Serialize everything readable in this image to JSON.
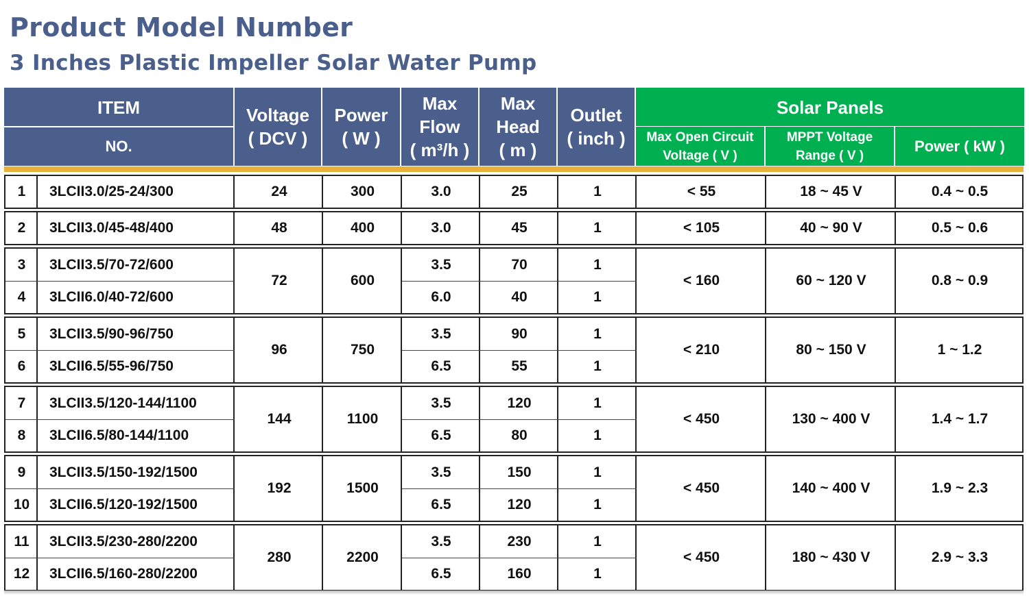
{
  "title": "Product Model Number",
  "subtitle": "3 Inches Plastic Impeller Solar Water Pump",
  "header": {
    "item": "ITEM",
    "no": "NO.",
    "voltage": "Voltage",
    "voltage_unit": "( DCV )",
    "power": "Power",
    "power_unit": "( W )",
    "flow_1": "Max",
    "flow_2": "Flow",
    "flow_unit": "( m³/h )",
    "head_1": "Max",
    "head_2": "Head",
    "head_unit": "( m )",
    "outlet": "Outlet",
    "outlet_unit": "( inch )",
    "solar": "Solar Panels",
    "voc_1": "Max Open Circuit",
    "voc_2": "Voltage ( V )",
    "mppt_1": "MPPT Voltage",
    "mppt_2": "Range ( V )",
    "kw": "Power ( kW )"
  },
  "groups": [
    {
      "voltage": "24",
      "power": "300",
      "voc": "< 55",
      "mppt": "18 ~ 45 V",
      "kw": "0.4 ~ 0.5",
      "rows": [
        {
          "no": "1",
          "model": "3LCII3.0/25-24/300",
          "flow": "3.0",
          "head": "25",
          "outlet": "1"
        }
      ]
    },
    {
      "voltage": "48",
      "power": "400",
      "voc": "< 105",
      "mppt": "40 ~ 90 V",
      "kw": "0.5 ~ 0.6",
      "rows": [
        {
          "no": "2",
          "model": "3LCII3.0/45-48/400",
          "flow": "3.0",
          "head": "45",
          "outlet": "1"
        }
      ]
    },
    {
      "voltage": "72",
      "power": "600",
      "voc": "< 160",
      "mppt": "60 ~ 120 V",
      "kw": "0.8 ~ 0.9",
      "rows": [
        {
          "no": "3",
          "model": "3LCII3.5/70-72/600",
          "flow": "3.5",
          "head": "70",
          "outlet": "1"
        },
        {
          "no": "4",
          "model": "3LCII6.0/40-72/600",
          "flow": "6.0",
          "head": "40",
          "outlet": "1"
        }
      ]
    },
    {
      "voltage": "96",
      "power": "750",
      "voc": "< 210",
      "mppt": "80 ~ 150 V",
      "kw": "1 ~ 1.2",
      "rows": [
        {
          "no": "5",
          "model": "3LCII3.5/90-96/750",
          "flow": "3.5",
          "head": "90",
          "outlet": "1"
        },
        {
          "no": "6",
          "model": "3LCII6.5/55-96/750",
          "flow": "6.5",
          "head": "55",
          "outlet": "1"
        }
      ]
    },
    {
      "voltage": "144",
      "power": "1100",
      "voc": "< 450",
      "mppt": "130 ~ 400 V",
      "kw": "1.4 ~ 1.7",
      "rows": [
        {
          "no": "7",
          "model": "3LCII3.5/120-144/1100",
          "flow": "3.5",
          "head": "120",
          "outlet": "1"
        },
        {
          "no": "8",
          "model": "3LCII6.5/80-144/1100",
          "flow": "6.5",
          "head": "80",
          "outlet": "1"
        }
      ]
    },
    {
      "voltage": "192",
      "power": "1500",
      "voc": "< 450",
      "mppt": "140 ~ 400 V",
      "kw": "1.9 ~ 2.3",
      "rows": [
        {
          "no": "9",
          "model": "3LCII3.5/150-192/1500",
          "flow": "3.5",
          "head": "150",
          "outlet": "1"
        },
        {
          "no": "10",
          "model": "3LCII6.5/120-192/1500",
          "flow": "6.5",
          "head": "120",
          "outlet": "1"
        }
      ]
    },
    {
      "voltage": "280",
      "power": "2200",
      "voc": "< 450",
      "mppt": "180 ~ 430 V",
      "kw": "2.9 ~ 3.3",
      "rows": [
        {
          "no": "11",
          "model": "3LCII3.5/230-280/2200",
          "flow": "3.5",
          "head": "230",
          "outlet": "1"
        },
        {
          "no": "12",
          "model": "3LCII6.5/160-280/2200",
          "flow": "6.5",
          "head": "160",
          "outlet": "1"
        }
      ]
    }
  ]
}
